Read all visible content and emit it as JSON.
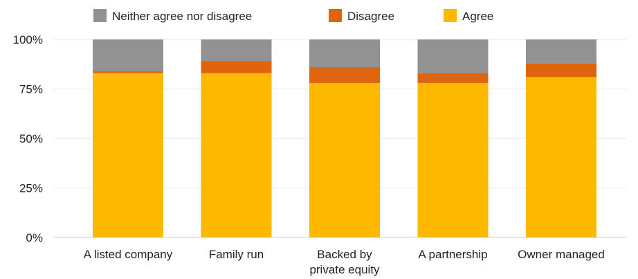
{
  "chart_data": {
    "type": "bar",
    "stacked": true,
    "categories": [
      "A listed company",
      "Family run",
      "Backed by private equity",
      "A partnership",
      "Owner managed"
    ],
    "category_label_lines": [
      [
        "A listed company"
      ],
      [
        "Family run"
      ],
      [
        "Backed by",
        "private equity"
      ],
      [
        "A partnership"
      ],
      [
        "Owner managed"
      ]
    ],
    "series": [
      {
        "name": "Agree",
        "color": "#FFB800",
        "values": [
          83,
          83,
          78,
          78,
          81
        ]
      },
      {
        "name": "Disagree",
        "color": "#E0630D",
        "values": [
          1,
          6,
          8,
          5,
          7
        ]
      },
      {
        "name": "Neither agree nor disagree",
        "color": "#929292",
        "values": [
          16,
          11,
          14,
          17,
          12
        ]
      }
    ],
    "legend_order": [
      "Neither agree nor disagree",
      "Disagree",
      "Agree"
    ],
    "legend_position": "top",
    "ylim": [
      0,
      100
    ],
    "yticks": [
      0,
      25,
      50,
      75,
      100
    ],
    "ytick_labels": [
      "0%",
      "25%",
      "50%",
      "75%",
      "100%"
    ],
    "grid": true,
    "title": "",
    "xlabel": "",
    "ylabel": ""
  }
}
